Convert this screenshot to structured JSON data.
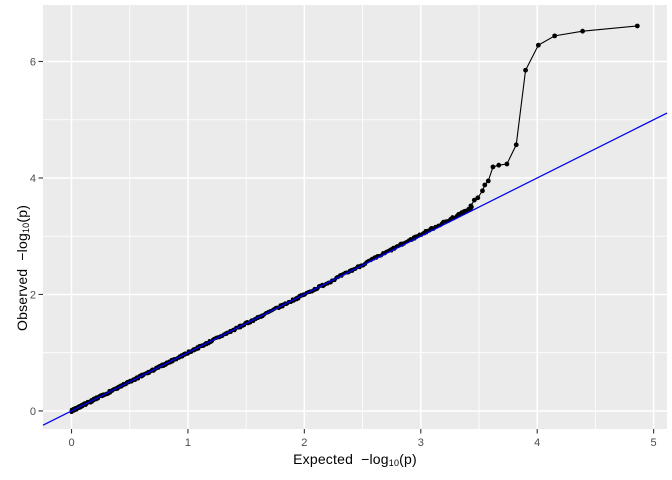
{
  "chart_data": {
    "type": "scatter",
    "title": "",
    "xlabel": "Expected −log10(p)",
    "ylabel": "Observed −log10(p)",
    "xlabel_parts": {
      "word": "Expected",
      "log": "−log",
      "sub": "10",
      "suffix": "(p)"
    },
    "ylabel_parts": {
      "word": "Observed",
      "log": "−log",
      "sub": "10",
      "suffix": "(p)"
    },
    "x_ticks": [
      0,
      1,
      2,
      3,
      4,
      5
    ],
    "y_ticks": [
      0,
      2,
      4,
      6
    ],
    "x_minor_ticks": [
      0.5,
      1.5,
      2.5,
      3.5,
      4.5
    ],
    "y_minor_ticks": [
      1,
      3,
      5
    ],
    "xlim": [
      -0.245,
      5.115
    ],
    "ylim": [
      -0.31,
      6.97
    ],
    "legend": "none",
    "grid": "on",
    "colors": {
      "panel_bg": "#EBEBEB",
      "grid": "#FFFFFF",
      "tick_mark": "#333333",
      "tick_label": "#4D4D4D",
      "axis_title": "#000000",
      "point": "#000000",
      "identity_line": "#0000EE"
    },
    "identity_line": {
      "slope": 1,
      "intercept": 0
    },
    "band": {
      "note": "dense QQ points lying on the y=x diagonal from the origin",
      "x_start": 0,
      "x_end": 3.44,
      "n_points": 620,
      "exponent": 1.6,
      "jitter": 0.022,
      "bias_start": 2.2,
      "bias_slope": 0.038,
      "seed": 7
    },
    "tail_points": [
      [
        3.36,
        3.4
      ],
      [
        3.39,
        3.43
      ],
      [
        3.41,
        3.46
      ],
      [
        3.43,
        3.52
      ],
      [
        3.46,
        3.62
      ],
      [
        3.49,
        3.66
      ],
      [
        3.53,
        3.78
      ],
      [
        3.55,
        3.88
      ],
      [
        3.58,
        3.95
      ],
      [
        3.62,
        4.19
      ],
      [
        3.67,
        4.22
      ],
      [
        3.74,
        4.24
      ],
      [
        3.82,
        4.57
      ],
      [
        3.9,
        5.85
      ],
      [
        4.01,
        6.28
      ],
      [
        4.15,
        6.44
      ],
      [
        4.39,
        6.52
      ],
      [
        4.86,
        6.61
      ]
    ]
  }
}
